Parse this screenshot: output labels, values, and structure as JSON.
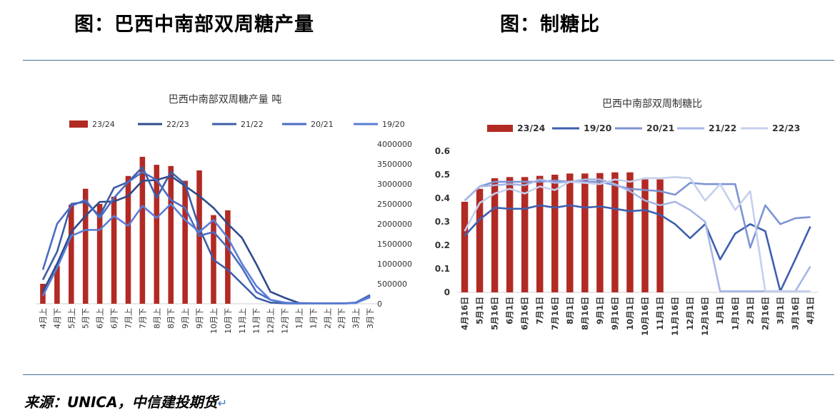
{
  "header": {
    "left_title": "图：巴西中南部双周糖产量",
    "right_title": "图：制糖比"
  },
  "footer": {
    "source": "来源：UNICA，中信建投期货",
    "return_mark": "↵"
  },
  "colors": {
    "rule": "#41709c",
    "bar": "#b22a24"
  },
  "chart_data": [
    {
      "type": "bar",
      "title": "巴西中南部双周糖产量 吨",
      "categories": [
        "4月上",
        "4月下",
        "5月上",
        "5月下",
        "6月上",
        "6月下",
        "7月上",
        "7月下",
        "8月上",
        "8月下",
        "9月上",
        "9月下",
        "10月上",
        "10月下",
        "11月上",
        "11月下",
        "12月上",
        "12月下",
        "1月上",
        "1月下",
        "2月上",
        "2月下",
        "3月上",
        "3月下"
      ],
      "ylim": [
        0,
        4000000
      ],
      "yticks": [
        "0",
        "500000",
        "1000000",
        "1500000",
        "2000000",
        "2500000",
        "3000000",
        "3500000",
        "4000000"
      ],
      "legend_position": "top",
      "series": [
        {
          "name": "23/24",
          "kind": "bar",
          "color": "#b22a24",
          "values": [
            500000,
            950000,
            2480000,
            2880000,
            2500000,
            2680000,
            3200000,
            3680000,
            3480000,
            3450000,
            3080000,
            3340000,
            2220000,
            2340000,
            null,
            null,
            null,
            null,
            null,
            null,
            null,
            null,
            null,
            null
          ]
        },
        {
          "name": "22/23",
          "kind": "line",
          "color": "#2f4b8c",
          "values": [
            300000,
            1000000,
            1800000,
            2200000,
            2550000,
            2560000,
            2700000,
            3080000,
            3100000,
            3200000,
            2950000,
            2700000,
            2400000,
            2000000,
            1650000,
            1000000,
            300000,
            150000,
            20000,
            10000,
            10000,
            10000,
            20000,
            200000
          ]
        },
        {
          "name": "21/22",
          "kind": "line",
          "color": "#3d5da6",
          "values": [
            600000,
            1300000,
            2500000,
            2550000,
            2200000,
            2900000,
            3050000,
            3420000,
            2650000,
            3300000,
            3000000,
            1900000,
            1100000,
            850000,
            500000,
            150000,
            30000,
            10000,
            5000,
            5000,
            5000,
            5000,
            20000,
            180000
          ]
        },
        {
          "name": "20/21",
          "kind": "line",
          "color": "#4a6cc2",
          "values": [
            850000,
            2000000,
            2450000,
            2600000,
            2150000,
            2650000,
            3050000,
            3300000,
            3100000,
            2600000,
            2400000,
            1700000,
            1800000,
            1400000,
            900000,
            300000,
            100000,
            20000,
            10000,
            5000,
            5000,
            5000,
            30000,
            220000
          ]
        },
        {
          "name": "19/20",
          "kind": "line",
          "color": "#5a7ed6",
          "values": [
            200000,
            900000,
            1700000,
            1850000,
            1850000,
            2200000,
            1950000,
            2450000,
            2150000,
            2500000,
            2100000,
            1800000,
            2100000,
            1650000,
            1000000,
            450000,
            100000,
            30000,
            10000,
            5000,
            5000,
            5000,
            20000,
            160000
          ]
        }
      ]
    },
    {
      "type": "bar",
      "title": "巴西中南部双周制糖比",
      "categories": [
        "4月16日",
        "5月1日",
        "5月16日",
        "6月1日",
        "6月16日",
        "7月1日",
        "7月16日",
        "8月1日",
        "8月16日",
        "9月1日",
        "9月16日",
        "10月1日",
        "10月16日",
        "11月1日",
        "11月16日",
        "12月1日",
        "12月16日",
        "1月1日",
        "1月16日",
        "2月1日",
        "2月16日",
        "3月1日",
        "3月16日",
        "4月1日"
      ],
      "ylim": [
        0,
        0.6
      ],
      "yticks": [
        "0",
        "0.1",
        "0.2",
        "0.3",
        "0.4",
        "0.5",
        "0.6"
      ],
      "legend_position": "top",
      "series": [
        {
          "name": "23/24",
          "kind": "bar",
          "color": "#b22a24",
          "values": [
            0.385,
            0.44,
            0.485,
            0.49,
            0.49,
            0.495,
            0.5,
            0.505,
            0.505,
            0.507,
            0.51,
            0.51,
            0.48,
            0.48,
            null,
            null,
            null,
            null,
            null,
            null,
            null,
            null,
            null,
            null
          ]
        },
        {
          "name": "19/20",
          "kind": "line",
          "color": "#3e5fb0",
          "values": [
            0.24,
            0.31,
            0.36,
            0.355,
            0.355,
            0.37,
            0.36,
            0.37,
            0.36,
            0.365,
            0.355,
            0.345,
            0.35,
            0.33,
            0.29,
            0.23,
            0.29,
            0.14,
            0.25,
            0.29,
            0.26,
            0.005,
            0.14,
            0.28
          ]
        },
        {
          "name": "20/21",
          "kind": "line",
          "color": "#7d94d4",
          "values": [
            0.39,
            0.45,
            0.47,
            0.47,
            0.47,
            0.47,
            0.475,
            0.47,
            0.47,
            0.47,
            0.455,
            0.44,
            0.435,
            0.43,
            0.415,
            0.465,
            0.46,
            0.46,
            0.46,
            0.19,
            0.37,
            0.29,
            0.315,
            0.32
          ]
        },
        {
          "name": "21/22",
          "kind": "line",
          "color": "#a6b6e6",
          "values": [
            0.39,
            0.45,
            0.455,
            0.46,
            0.455,
            0.48,
            0.465,
            0.47,
            0.48,
            0.48,
            0.46,
            0.43,
            0.39,
            0.37,
            0.385,
            0.35,
            0.3,
            0.005,
            0.005,
            0.005,
            0.005,
            0.005,
            0.005,
            0.11
          ]
        },
        {
          "name": "22/23",
          "kind": "line",
          "color": "#c5cfee",
          "values": [
            0.26,
            0.38,
            0.42,
            0.44,
            0.42,
            0.45,
            0.435,
            0.47,
            0.465,
            0.46,
            0.48,
            0.47,
            0.485,
            0.485,
            0.49,
            0.485,
            0.39,
            0.46,
            0.35,
            0.43,
            0.005,
            0.005,
            0.005,
            0.005
          ]
        }
      ]
    }
  ]
}
